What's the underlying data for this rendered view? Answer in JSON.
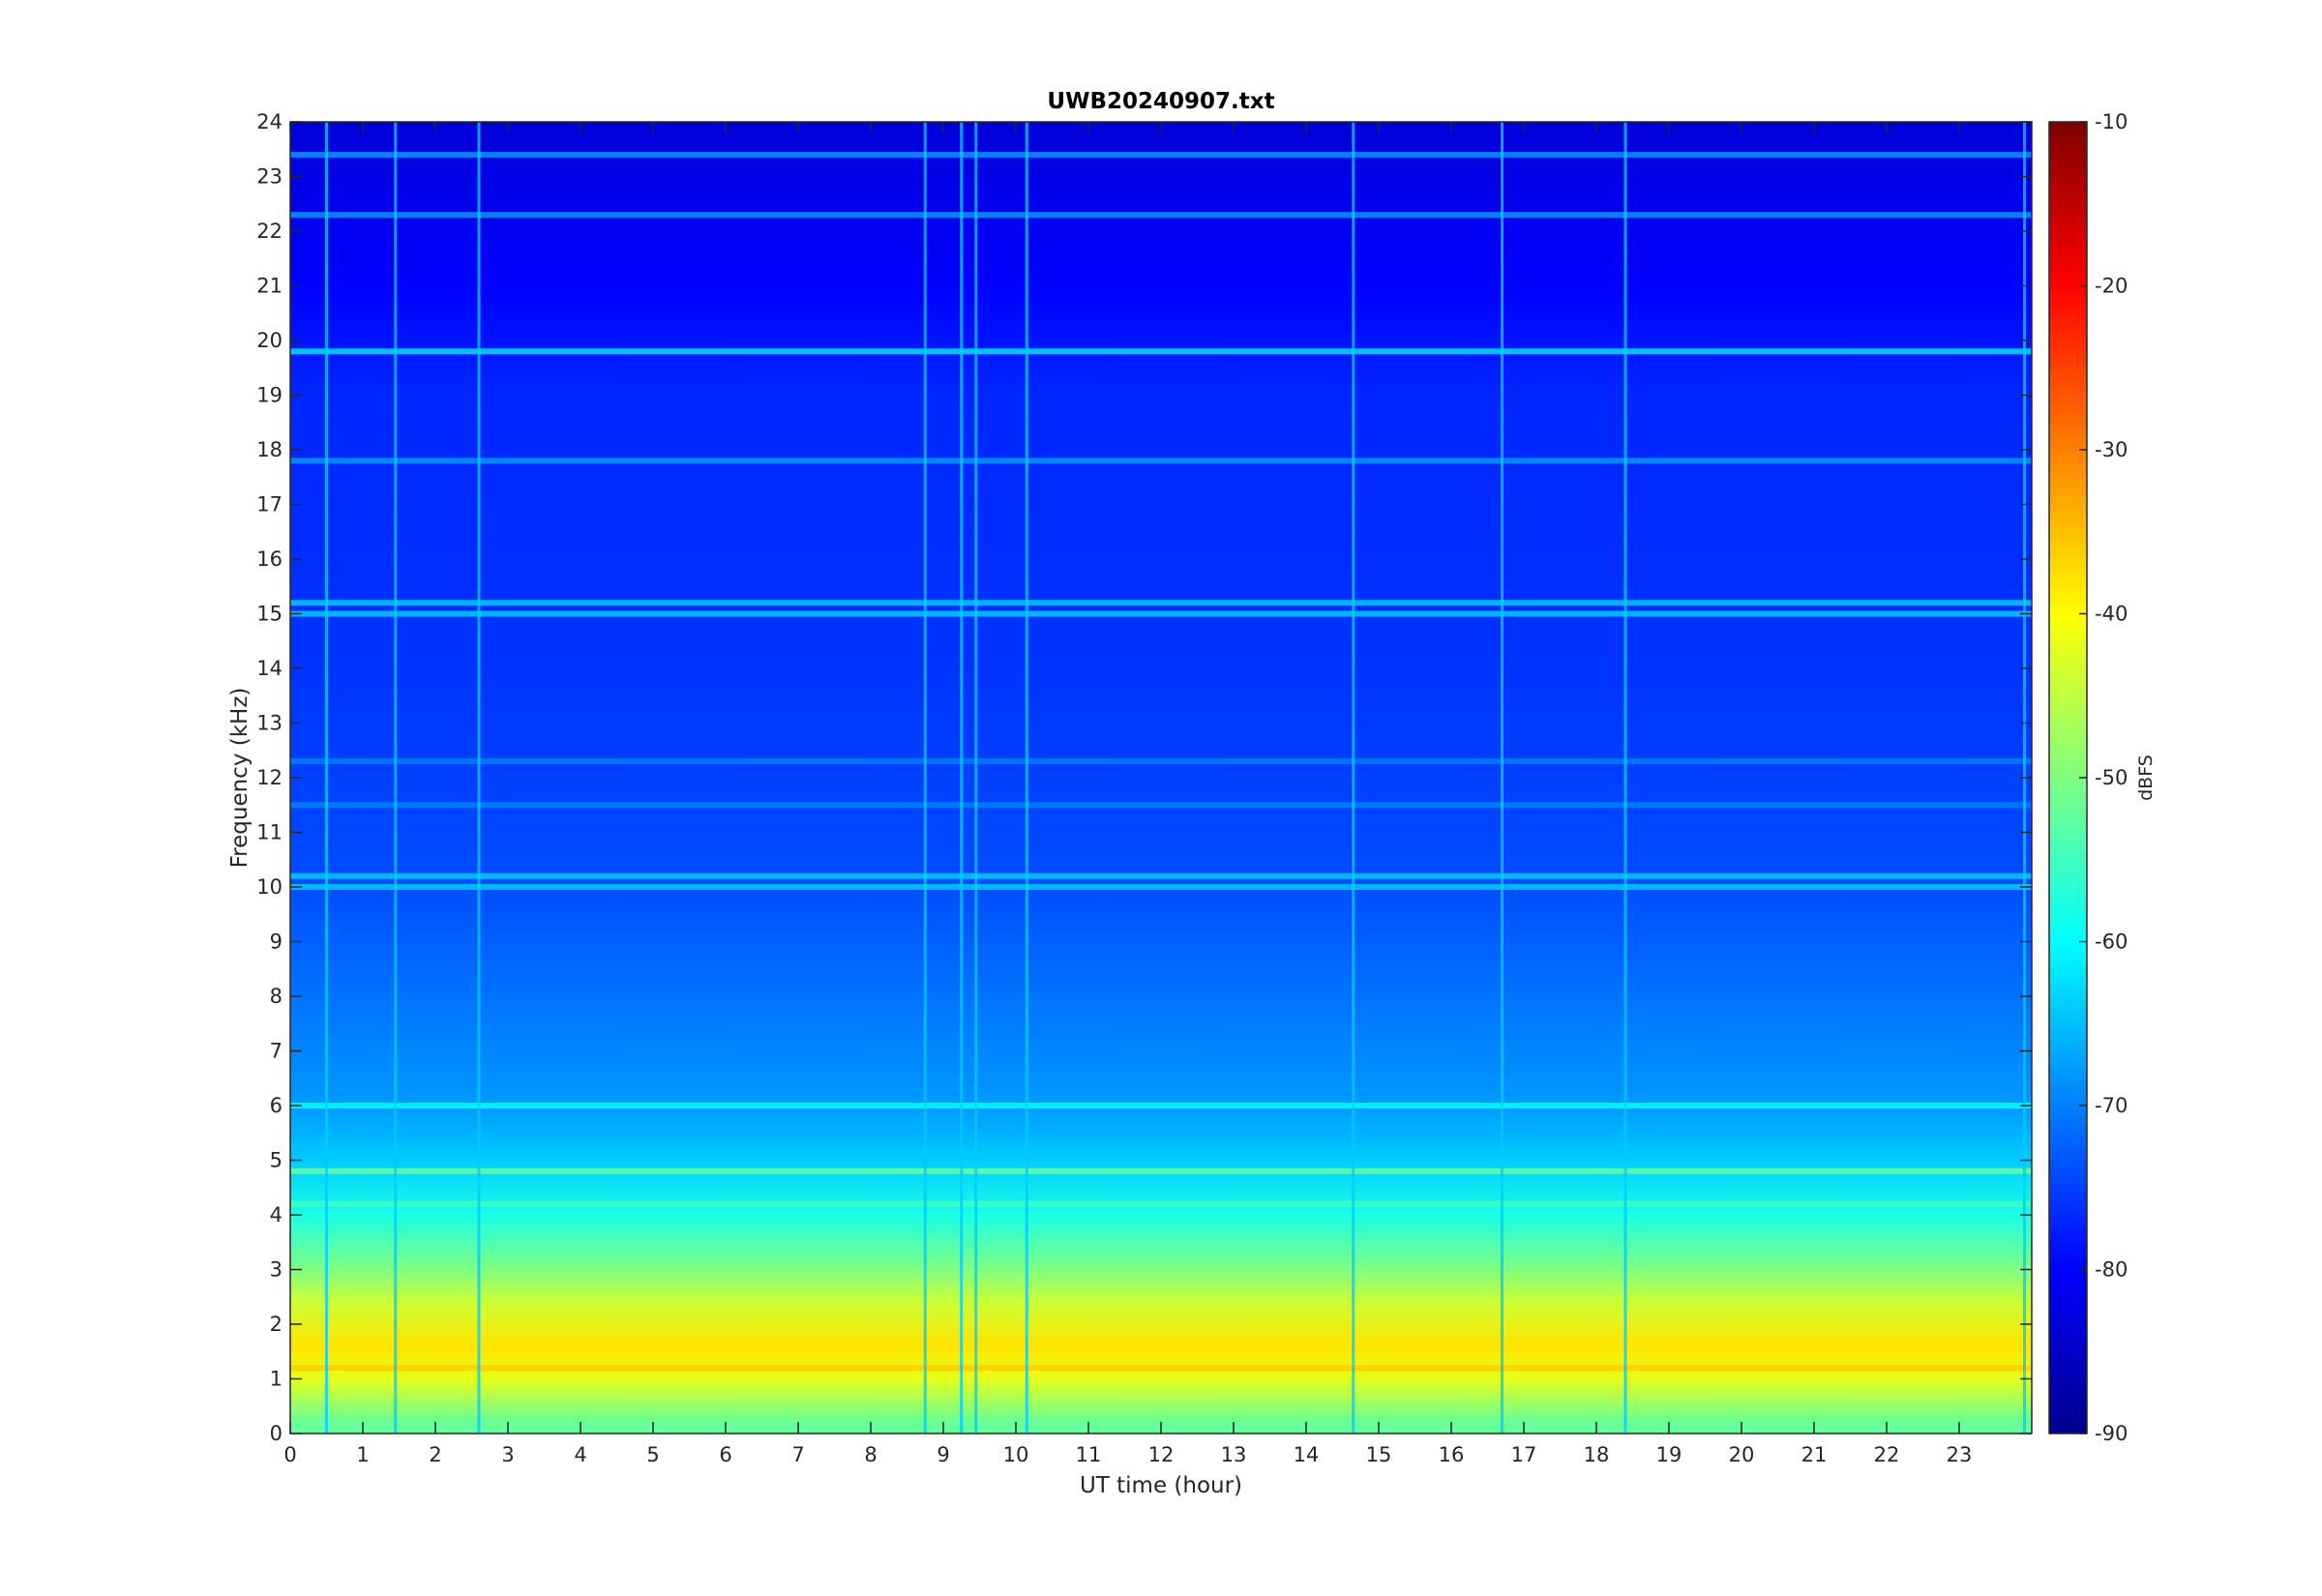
{
  "chart_data": {
    "type": "heatmap",
    "title": "UWB20240907.txt",
    "xlabel": "UT time (hour)",
    "ylabel": "Frequency (kHz)",
    "xlim": [
      0,
      24
    ],
    "ylim": [
      0,
      24
    ],
    "x_ticks": [
      0,
      1,
      2,
      3,
      4,
      5,
      6,
      7,
      8,
      9,
      10,
      11,
      12,
      13,
      14,
      15,
      16,
      17,
      18,
      19,
      20,
      21,
      22,
      23
    ],
    "y_ticks": [
      0,
      1,
      2,
      3,
      4,
      5,
      6,
      7,
      8,
      9,
      10,
      11,
      12,
      13,
      14,
      15,
      16,
      17,
      18,
      19,
      20,
      21,
      22,
      23,
      24
    ],
    "colormap": "jet",
    "colorbar": {
      "label": "dBFS",
      "limits": [
        -90,
        -10
      ],
      "ticks": [
        -10,
        -20,
        -30,
        -40,
        -50,
        -60,
        -70,
        -80,
        -90
      ]
    },
    "background_level_profile": [
      {
        "freq_khz": 0.2,
        "dbfs": -52
      },
      {
        "freq_khz": 1.0,
        "dbfs": -42
      },
      {
        "freq_khz": 1.6,
        "dbfs": -38
      },
      {
        "freq_khz": 2.4,
        "dbfs": -44
      },
      {
        "freq_khz": 3.0,
        "dbfs": -50
      },
      {
        "freq_khz": 4.0,
        "dbfs": -58
      },
      {
        "freq_khz": 5.0,
        "dbfs": -64
      },
      {
        "freq_khz": 6.0,
        "dbfs": -68
      },
      {
        "freq_khz": 8.0,
        "dbfs": -71
      },
      {
        "freq_khz": 10.0,
        "dbfs": -74
      },
      {
        "freq_khz": 14.0,
        "dbfs": -76
      },
      {
        "freq_khz": 19.0,
        "dbfs": -77
      },
      {
        "freq_khz": 21.0,
        "dbfs": -80
      },
      {
        "freq_khz": 24.0,
        "dbfs": -83
      }
    ],
    "horizontal_lines": [
      {
        "freq_khz": 19.8,
        "dbfs": -62
      },
      {
        "freq_khz": 22.3,
        "dbfs": -68
      },
      {
        "freq_khz": 23.4,
        "dbfs": -68
      },
      {
        "freq_khz": 17.8,
        "dbfs": -68
      },
      {
        "freq_khz": 15.2,
        "dbfs": -64
      },
      {
        "freq_khz": 15.0,
        "dbfs": -64
      },
      {
        "freq_khz": 10.2,
        "dbfs": -64
      },
      {
        "freq_khz": 10.0,
        "dbfs": -64
      },
      {
        "freq_khz": 12.3,
        "dbfs": -70
      },
      {
        "freq_khz": 11.5,
        "dbfs": -70
      },
      {
        "freq_khz": 6.0,
        "dbfs": -60
      },
      {
        "freq_khz": 4.8,
        "dbfs": -52
      },
      {
        "freq_khz": 4.2,
        "dbfs": -55
      },
      {
        "freq_khz": 1.2,
        "dbfs": -36
      }
    ],
    "vertical_lines_hours": [
      0.5,
      1.45,
      2.6,
      8.75,
      9.25,
      9.45,
      10.15,
      14.65,
      16.7,
      18.4,
      23.9
    ]
  }
}
